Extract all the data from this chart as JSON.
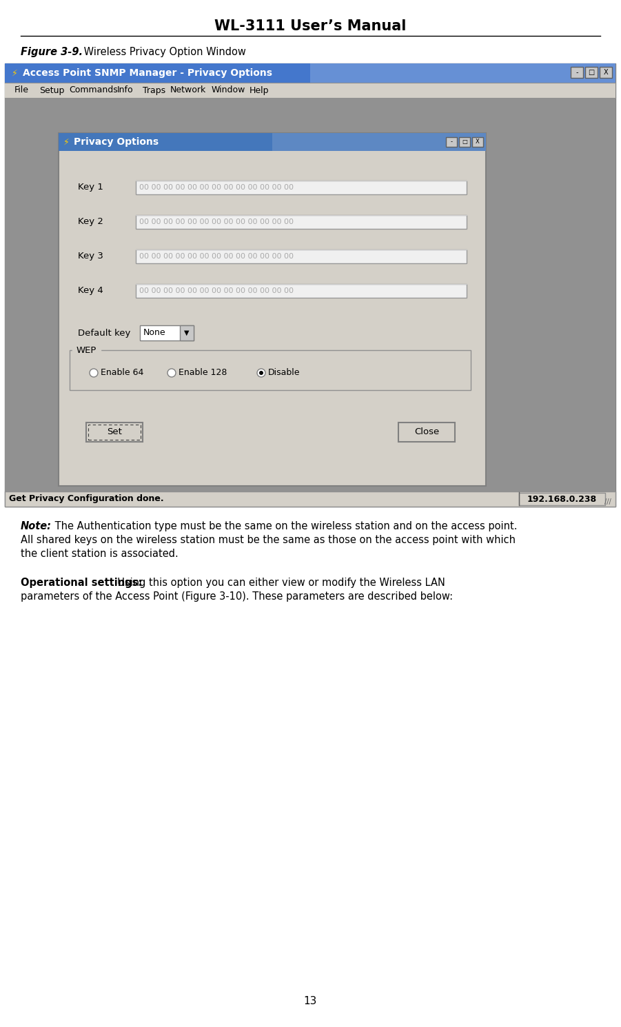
{
  "title": "WL-3111 User’s Manual",
  "figure_label_bold": "Figure 3-9.",
  "figure_label_normal": " Wireless Privacy Option Window",
  "page_number": "13",
  "note_bold": "Note:",
  "note_line1": " The Authentication type must be the same on the wireless station and on the access point.",
  "note_line2": "All shared keys on the wireless station must be the same as those on the access point with which",
  "note_line3": "the client station is associated.",
  "ops_bold": "Operational settings:",
  "ops_line1": "  Using this option you can either view or modify the Wireless LAN",
  "ops_line2": "parameters of the Access Point (Figure 3-10). These parameters are described below:",
  "window_title": "Access Point SNMP Manager - Privacy Options",
  "menu_items": [
    "File",
    "Setup",
    "Commands",
    "Info",
    "Traps",
    "Network",
    "Window",
    "Help"
  ],
  "menu_x": [
    14,
    50,
    93,
    163,
    200,
    240,
    300,
    355
  ],
  "dialog_title": "Privacy Options",
  "key_labels": [
    "Key 1",
    "Key 2",
    "Key 3",
    "Key 4"
  ],
  "key_values": "00 00 00 00 00 00 00 00 00 00 00 00 00",
  "default_key_label": "Default key",
  "default_key_value": "None",
  "wep_label": "WEP",
  "wep_options": [
    "Enable 64",
    "Enable 128",
    "Disable"
  ],
  "wep_selected": 2,
  "btn_set": "Set",
  "btn_close": "Close",
  "status_left": "Get Privacy Configuration done.",
  "status_right": "192.168.0.238",
  "bg_color": "#ffffff",
  "outer_bg": "#999999",
  "outer_title_bg": "#4477cc",
  "menu_bg": "#d4d0c8",
  "dialog_bg": "#d4d0c8",
  "dialog_title_bg": "#4477bb",
  "textbox_bg": "#f0f0f0",
  "status_bg": "#d4d0c8"
}
